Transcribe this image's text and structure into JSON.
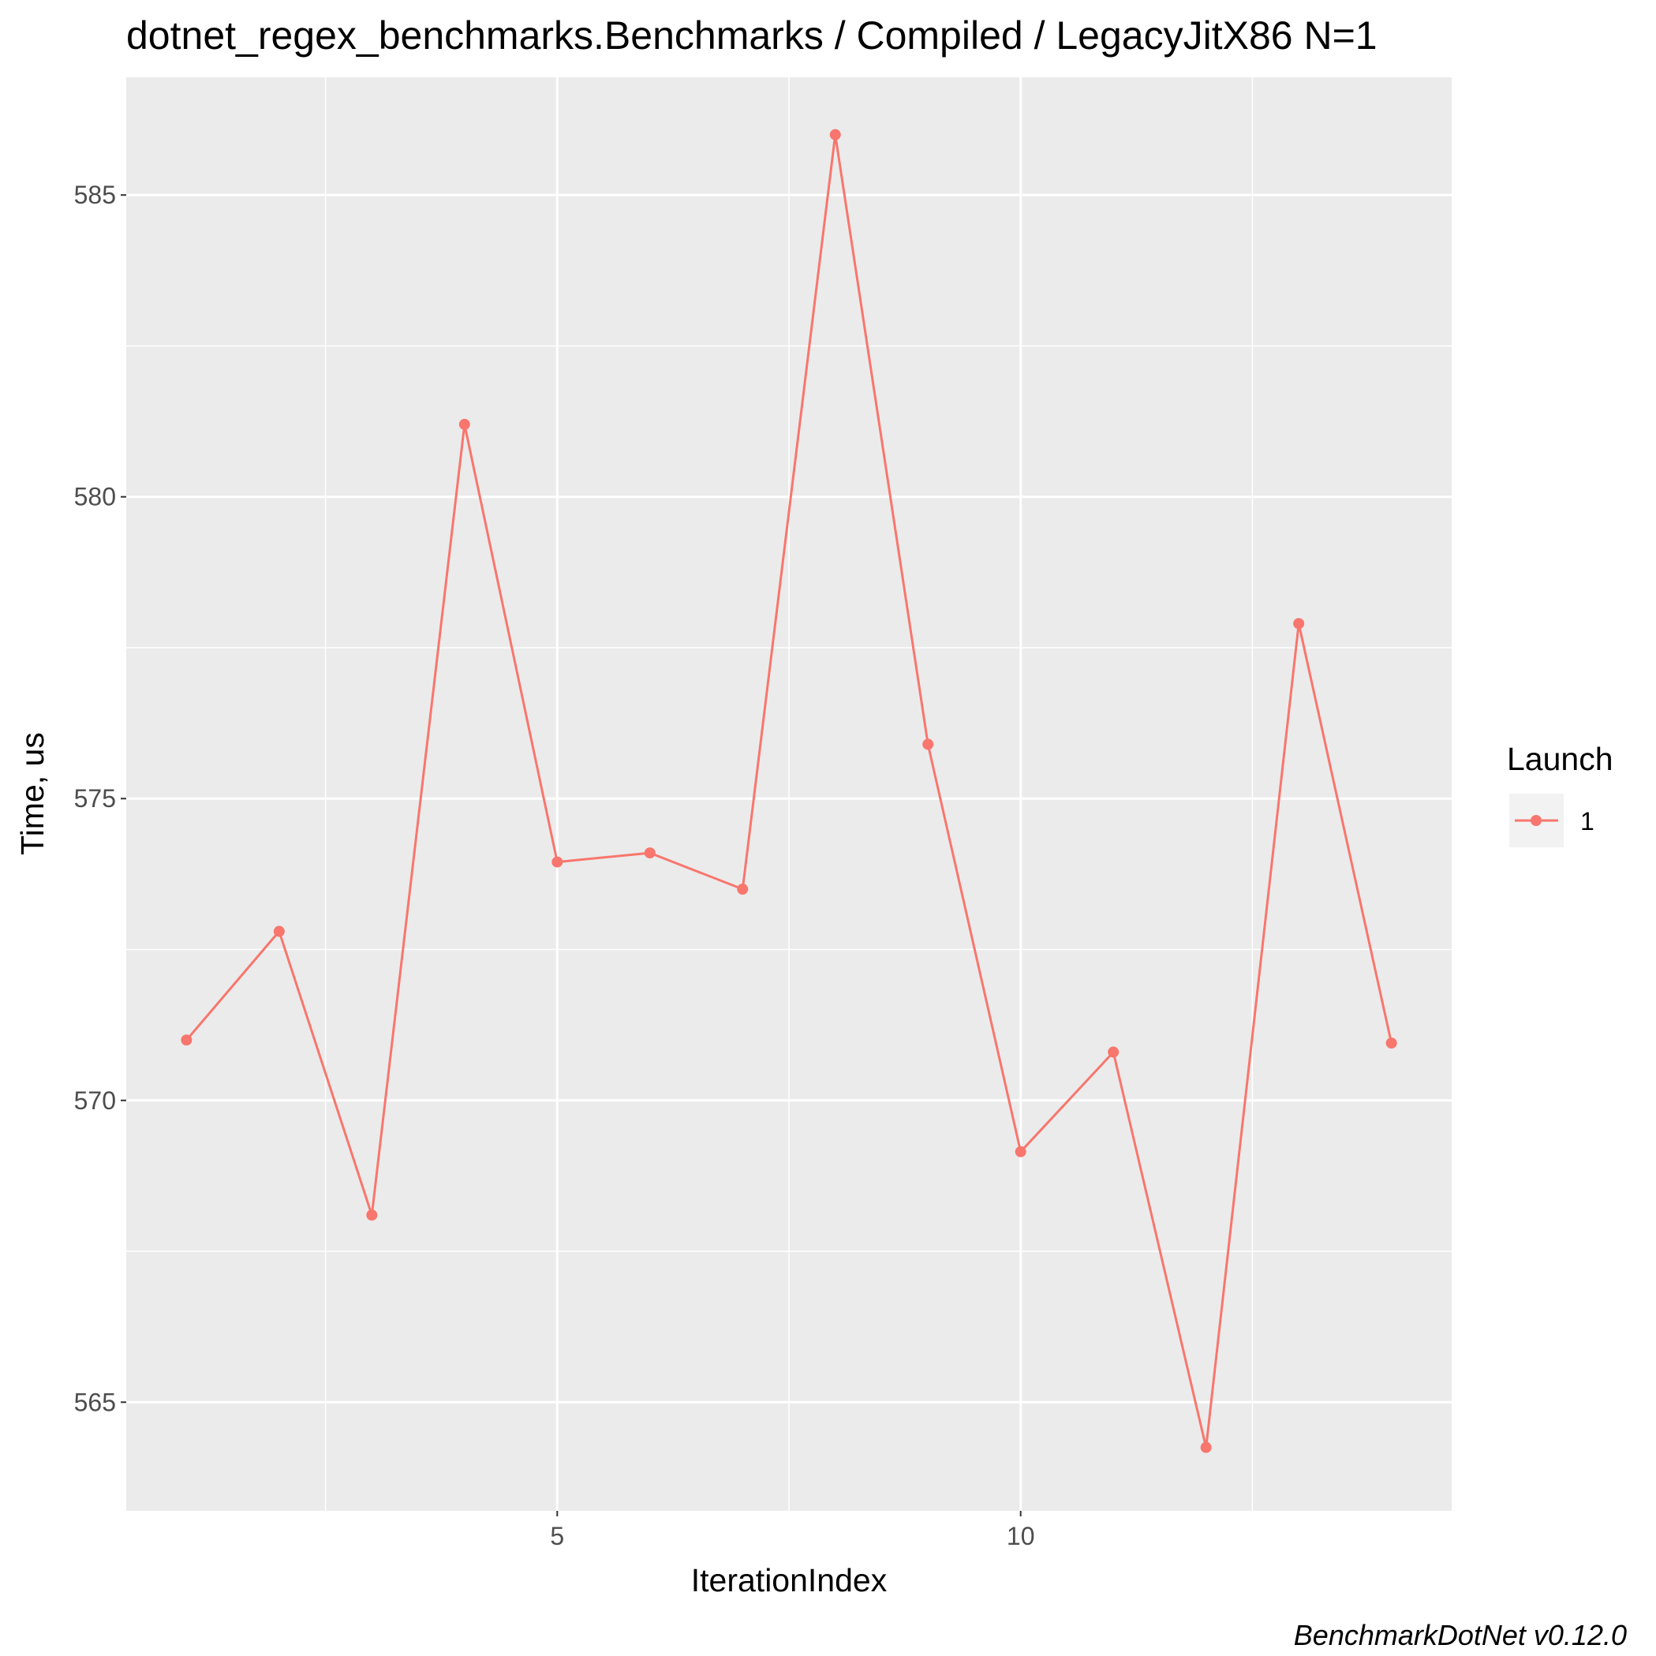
{
  "chart_data": {
    "type": "line",
    "title": "dotnet_regex_benchmarks.Benchmarks / Compiled / LegacyJitX86 N=1",
    "xlabel": "IterationIndex",
    "ylabel": "Time, us",
    "caption": "BenchmarkDotNet v0.12.0",
    "x_ticks": [
      5,
      10
    ],
    "y_ticks": [
      565,
      570,
      575,
      580,
      585
    ],
    "xlim": [
      0.35,
      14.65
    ],
    "ylim": [
      563.2,
      586.95
    ],
    "grid": true,
    "legend": {
      "title": "Launch",
      "position": "right"
    },
    "series": [
      {
        "name": "1",
        "color": "#F8766D",
        "x": [
          1,
          2,
          3,
          4,
          5,
          6,
          7,
          8,
          9,
          10,
          11,
          12,
          13,
          14
        ],
        "y": [
          571.0,
          572.8,
          568.1,
          581.2,
          573.95,
          574.1,
          573.5,
          586.0,
          575.9,
          569.15,
          570.8,
          564.25,
          577.9,
          570.95
        ]
      }
    ]
  }
}
